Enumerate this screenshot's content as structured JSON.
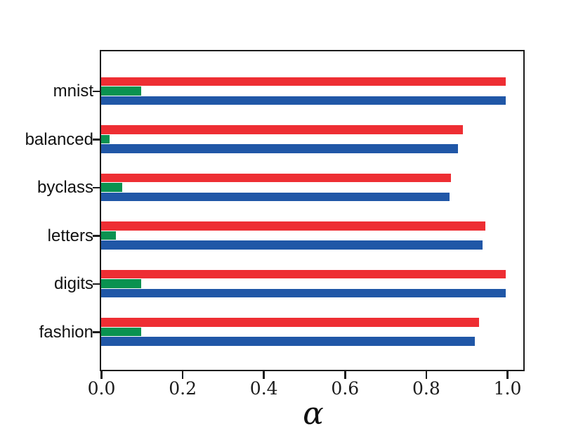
{
  "chart_data": {
    "type": "bar",
    "orientation": "horizontal",
    "title": "",
    "xlabel": "α",
    "ylabel": "",
    "xlim": [
      0,
      1.045
    ],
    "xticks": [
      "0.0",
      "0.2",
      "0.4",
      "0.6",
      "0.8",
      "1.0"
    ],
    "xtick_values": [
      0.0,
      0.2,
      0.4,
      0.6,
      0.8,
      1.0
    ],
    "grid": false,
    "legend": "none",
    "categories": [
      "mnist",
      "balanced",
      "byclass",
      "letters",
      "digits",
      "fashion"
    ],
    "series": [
      {
        "name": "red",
        "color": "#ee2e33",
        "values": [
          0.997,
          0.891,
          0.862,
          0.946,
          0.997,
          0.931
        ]
      },
      {
        "name": "green",
        "color": "#0a9250",
        "values": [
          0.099,
          0.02,
          0.052,
          0.036,
          0.099,
          0.099
        ]
      },
      {
        "name": "blue",
        "color": "#2057a7",
        "values": [
          0.997,
          0.878,
          0.858,
          0.939,
          0.997,
          0.92
        ]
      }
    ],
    "colors": {
      "axes": "#1c1c1c",
      "background": "#ffffff",
      "text": "#111111"
    }
  }
}
